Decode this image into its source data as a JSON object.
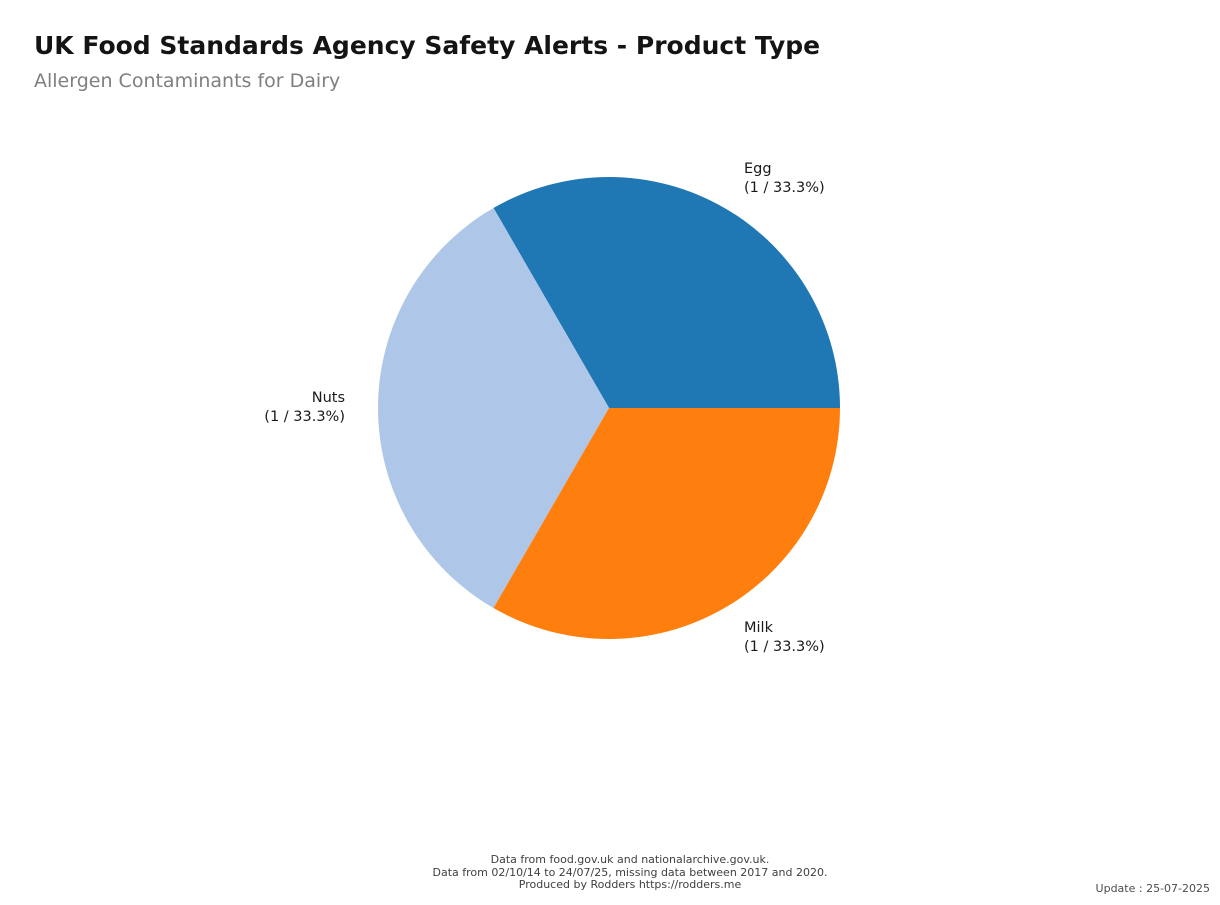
{
  "chart_data": {
    "type": "pie",
    "title": "UK Food Standards Agency Safety Alerts - Product Type",
    "subtitle": "Allergen Contaminants for Dairy",
    "start_angle": 0,
    "direction": "counterclockwise",
    "legend": "none",
    "total": 3,
    "slices": [
      {
        "label": "Egg",
        "value": 1,
        "percent": 33.3,
        "value_label": "(1 / 33.3%)",
        "color": "#1f77b4"
      },
      {
        "label": "Nuts",
        "value": 1,
        "percent": 33.3,
        "value_label": "(1 / 33.3%)",
        "color": "#aec7e8"
      },
      {
        "label": "Milk",
        "value": 1,
        "percent": 33.3,
        "value_label": "(1 / 33.3%)",
        "color": "#ff7f0e"
      }
    ]
  },
  "footer": {
    "lines": [
      "Data from food.gov.uk and nationalarchive.gov.uk.",
      "Data from 02/10/14 to 24/07/25, missing data between 2017 and 2020.",
      "Produced by Rodders https://rodders.me"
    ],
    "update": "Update : 25-07-2025"
  }
}
